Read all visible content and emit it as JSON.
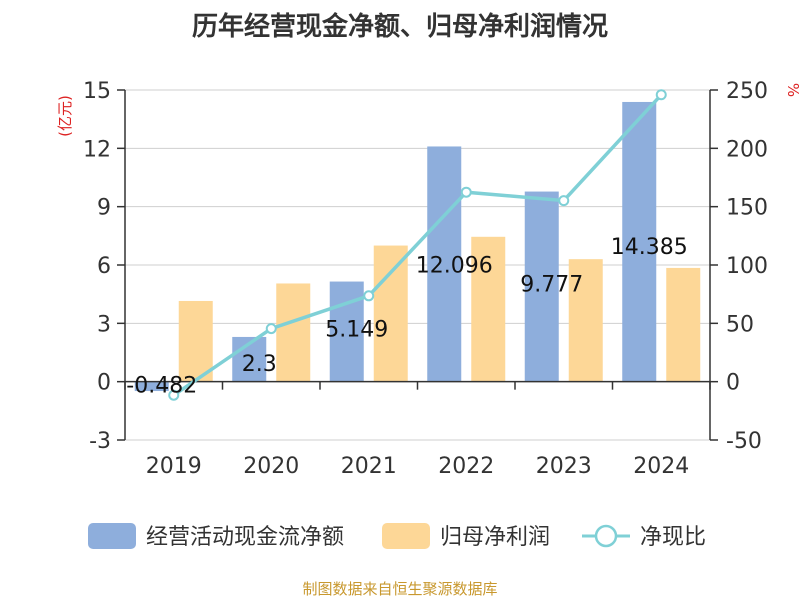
{
  "chart_data": {
    "type": "bar",
    "title": "历年经营现金净额、归母净利润情况",
    "categories": [
      "2019",
      "2020",
      "2021",
      "2022",
      "2023",
      "2024"
    ],
    "y_left": {
      "label": "(亿元)",
      "min": -3,
      "max": 15,
      "ticks": [
        -3,
        0,
        3,
        6,
        9,
        12,
        15
      ]
    },
    "y_right": {
      "label": "%",
      "min": -50,
      "max": 250,
      "ticks": [
        -50,
        0,
        50,
        100,
        150,
        200,
        250
      ]
    },
    "series": [
      {
        "name": "经营活动现金流净额",
        "kind": "bar",
        "axis": "left",
        "color": "#8eaedc",
        "values": [
          -0.482,
          2.3,
          5.149,
          12.096,
          9.777,
          14.385
        ],
        "labels": [
          "-0.482",
          "2.3",
          "5.149",
          "12.096",
          "9.777",
          "14.385"
        ]
      },
      {
        "name": "归母净利润",
        "kind": "bar",
        "axis": "left",
        "color": "#fdd797",
        "values": [
          4.15,
          5.05,
          7.0,
          7.45,
          6.3,
          5.85
        ]
      },
      {
        "name": "净现比",
        "kind": "line",
        "axis": "right",
        "color": "#7fd0d6",
        "values": [
          -11.6,
          45.5,
          73.6,
          162.4,
          155.2,
          245.9
        ]
      }
    ],
    "grid": true,
    "legend_position": "bottom"
  },
  "source_text": "制图数据来自恒生聚源数据库",
  "colors": {
    "axis_label_red": "#dd2222",
    "source_text": "#c8982e",
    "grid": "#cfcfcf",
    "axis": "#333333"
  }
}
